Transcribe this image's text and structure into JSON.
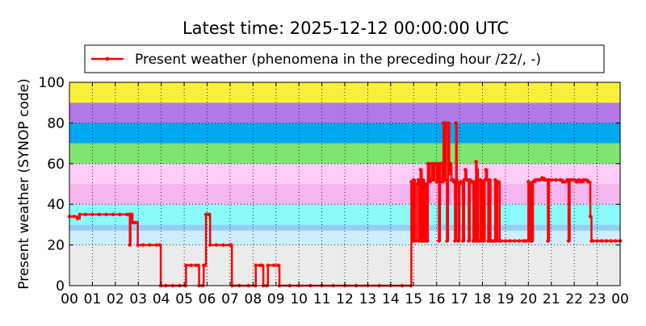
{
  "chart_data": {
    "type": "line",
    "title": "Latest time: 2025-12-12 00:00:00 UTC",
    "xlabel": "",
    "ylabel": "Present weather (SYNOP code)",
    "xlim": [
      0,
      24
    ],
    "ylim": [
      0,
      100
    ],
    "x_unit": "hour UTC",
    "x_tick_labels": [
      "00",
      "01",
      "02",
      "03",
      "04",
      "05",
      "06",
      "07",
      "08",
      "09",
      "10",
      "11",
      "12",
      "13",
      "14",
      "15",
      "16",
      "17",
      "18",
      "19",
      "20",
      "21",
      "22",
      "23",
      "00"
    ],
    "y_tick_labels": [
      "0",
      "20",
      "40",
      "60",
      "80",
      "100"
    ],
    "grid": true,
    "legend_position": "top",
    "background_bands": [
      {
        "from": 0,
        "to": 20,
        "color": "#ebebeb"
      },
      {
        "from": 20,
        "to": 27,
        "color": "#cdeeff"
      },
      {
        "from": 27,
        "to": 30,
        "color": "#94d0f6"
      },
      {
        "from": 30,
        "to": 40,
        "color": "#8afcfc"
      },
      {
        "from": 40,
        "to": 50,
        "color": "#f6b6f0"
      },
      {
        "from": 50,
        "to": 60,
        "color": "#fecdf8"
      },
      {
        "from": 60,
        "to": 70,
        "color": "#7fe671"
      },
      {
        "from": 70,
        "to": 80,
        "color": "#00a8f0"
      },
      {
        "from": 80,
        "to": 90,
        "color": "#b27ae8"
      },
      {
        "from": 90,
        "to": 100,
        "color": "#f8f038"
      }
    ],
    "series": [
      {
        "name": "Present weather (phenomena in the preceding hour /22/, -)",
        "color": "#ff0000",
        "points": [
          [
            0.0,
            34
          ],
          [
            0.2,
            34
          ],
          [
            0.35,
            33
          ],
          [
            0.45,
            35
          ],
          [
            0.7,
            35
          ],
          [
            1.0,
            35
          ],
          [
            1.3,
            35
          ],
          [
            1.6,
            35
          ],
          [
            1.9,
            35
          ],
          [
            2.2,
            35
          ],
          [
            2.5,
            35
          ],
          [
            2.6,
            35
          ],
          [
            2.63,
            20
          ],
          [
            2.66,
            35
          ],
          [
            2.72,
            35
          ],
          [
            2.75,
            31
          ],
          [
            2.85,
            31
          ],
          [
            2.95,
            31
          ],
          [
            2.98,
            20
          ],
          [
            3.2,
            20
          ],
          [
            3.5,
            20
          ],
          [
            3.8,
            20
          ],
          [
            3.95,
            20
          ],
          [
            3.98,
            0
          ],
          [
            4.2,
            0
          ],
          [
            4.5,
            0
          ],
          [
            4.8,
            0
          ],
          [
            5.05,
            0
          ],
          [
            5.08,
            10
          ],
          [
            5.3,
            10
          ],
          [
            5.5,
            10
          ],
          [
            5.62,
            10
          ],
          [
            5.65,
            0
          ],
          [
            5.8,
            0
          ],
          [
            5.85,
            10
          ],
          [
            5.9,
            10
          ],
          [
            5.95,
            35
          ],
          [
            6.05,
            35
          ],
          [
            6.1,
            35
          ],
          [
            6.13,
            20
          ],
          [
            6.4,
            20
          ],
          [
            6.7,
            20
          ],
          [
            7.0,
            20
          ],
          [
            7.05,
            20
          ],
          [
            7.08,
            0
          ],
          [
            7.4,
            0
          ],
          [
            7.8,
            0
          ],
          [
            8.1,
            0
          ],
          [
            8.12,
            10
          ],
          [
            8.3,
            10
          ],
          [
            8.4,
            10
          ],
          [
            8.45,
            0
          ],
          [
            8.6,
            0
          ],
          [
            8.65,
            10
          ],
          [
            8.9,
            10
          ],
          [
            9.1,
            10
          ],
          [
            9.15,
            0
          ],
          [
            9.6,
            0
          ],
          [
            10.0,
            0
          ],
          [
            10.5,
            0
          ],
          [
            11.0,
            0
          ],
          [
            11.5,
            0
          ],
          [
            12.0,
            0
          ],
          [
            12.5,
            0
          ],
          [
            13.0,
            0
          ],
          [
            13.5,
            0
          ],
          [
            14.0,
            0
          ],
          [
            14.5,
            0
          ],
          [
            14.88,
            0
          ],
          [
            14.9,
            51
          ],
          [
            14.95,
            22
          ],
          [
            15.0,
            52
          ],
          [
            15.05,
            22
          ],
          [
            15.1,
            22
          ],
          [
            15.15,
            50
          ],
          [
            15.2,
            52
          ],
          [
            15.25,
            22
          ],
          [
            15.3,
            57
          ],
          [
            15.35,
            22
          ],
          [
            15.4,
            52
          ],
          [
            15.45,
            22
          ],
          [
            15.5,
            50
          ],
          [
            15.55,
            22
          ],
          [
            15.6,
            22
          ],
          [
            15.62,
            60
          ],
          [
            15.65,
            60
          ],
          [
            15.7,
            51
          ],
          [
            15.75,
            52
          ],
          [
            15.8,
            60
          ],
          [
            15.85,
            52
          ],
          [
            15.9,
            60
          ],
          [
            15.95,
            60
          ],
          [
            16.0,
            51
          ],
          [
            16.05,
            60
          ],
          [
            16.1,
            22
          ],
          [
            16.15,
            60
          ],
          [
            16.2,
            60
          ],
          [
            16.25,
            51
          ],
          [
            16.3,
            80
          ],
          [
            16.33,
            52
          ],
          [
            16.36,
            80
          ],
          [
            16.4,
            52
          ],
          [
            16.45,
            22
          ],
          [
            16.5,
            80
          ],
          [
            16.55,
            55
          ],
          [
            16.6,
            60
          ],
          [
            16.65,
            52
          ],
          [
            16.7,
            52
          ],
          [
            16.75,
            51
          ],
          [
            16.8,
            22
          ],
          [
            16.85,
            80
          ],
          [
            16.88,
            52
          ],
          [
            16.9,
            51
          ],
          [
            16.95,
            22
          ],
          [
            17.0,
            50
          ],
          [
            17.05,
            51
          ],
          [
            17.1,
            51
          ],
          [
            17.15,
            22
          ],
          [
            17.2,
            52
          ],
          [
            17.25,
            57
          ],
          [
            17.3,
            52
          ],
          [
            17.35,
            52
          ],
          [
            17.4,
            22
          ],
          [
            17.45,
            52
          ],
          [
            17.5,
            51
          ],
          [
            17.55,
            51
          ],
          [
            17.6,
            22
          ],
          [
            17.65,
            51
          ],
          [
            17.7,
            22
          ],
          [
            17.72,
            61
          ],
          [
            17.75,
            57
          ],
          [
            17.8,
            22
          ],
          [
            17.85,
            22
          ],
          [
            17.9,
            52
          ],
          [
            17.95,
            22
          ],
          [
            18.0,
            51
          ],
          [
            18.05,
            22
          ],
          [
            18.1,
            52
          ],
          [
            18.15,
            57
          ],
          [
            18.2,
            52
          ],
          [
            18.25,
            22
          ],
          [
            18.3,
            52
          ],
          [
            18.35,
            22
          ],
          [
            18.4,
            22
          ],
          [
            18.5,
            22
          ],
          [
            18.55,
            52
          ],
          [
            18.6,
            22
          ],
          [
            18.65,
            51
          ],
          [
            18.7,
            51
          ],
          [
            18.75,
            22
          ],
          [
            18.8,
            22
          ],
          [
            19.0,
            22
          ],
          [
            19.2,
            22
          ],
          [
            19.4,
            22
          ],
          [
            19.6,
            22
          ],
          [
            19.8,
            22
          ],
          [
            19.9,
            22
          ],
          [
            20.0,
            51
          ],
          [
            20.05,
            22
          ],
          [
            20.1,
            50
          ],
          [
            20.15,
            22
          ],
          [
            20.2,
            51
          ],
          [
            20.3,
            52
          ],
          [
            20.4,
            52
          ],
          [
            20.5,
            52
          ],
          [
            20.6,
            53
          ],
          [
            20.7,
            52
          ],
          [
            20.8,
            52
          ],
          [
            20.85,
            22
          ],
          [
            20.9,
            52
          ],
          [
            21.0,
            52
          ],
          [
            21.2,
            52
          ],
          [
            21.4,
            52
          ],
          [
            21.5,
            51
          ],
          [
            21.6,
            51
          ],
          [
            21.7,
            52
          ],
          [
            21.75,
            22
          ],
          [
            21.8,
            52
          ],
          [
            21.9,
            52
          ],
          [
            22.0,
            52
          ],
          [
            22.1,
            51
          ],
          [
            22.2,
            52
          ],
          [
            22.3,
            51
          ],
          [
            22.4,
            52
          ],
          [
            22.5,
            52
          ],
          [
            22.6,
            51
          ],
          [
            22.7,
            34
          ],
          [
            22.75,
            22
          ],
          [
            22.8,
            22
          ],
          [
            23.0,
            22
          ],
          [
            23.2,
            22
          ],
          [
            23.4,
            22
          ],
          [
            23.6,
            22
          ],
          [
            23.8,
            22
          ],
          [
            24.0,
            22
          ]
        ]
      }
    ]
  }
}
